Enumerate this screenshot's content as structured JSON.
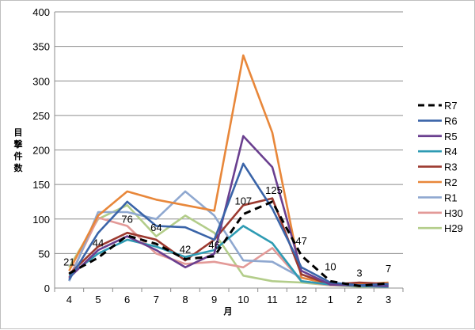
{
  "chart_data": {
    "type": "line",
    "title": "",
    "xlabel": "月",
    "ylabel": "目撃件数",
    "categories": [
      "4",
      "5",
      "6",
      "7",
      "8",
      "9",
      "10",
      "11",
      "12",
      "1",
      "2",
      "3"
    ],
    "ylim": [
      0,
      400
    ],
    "yticks": [
      "0",
      "50",
      "100",
      "150",
      "200",
      "250",
      "300",
      "350",
      "400"
    ],
    "grid": "horizontal",
    "legend_position": "right",
    "series": [
      {
        "name": "R7",
        "color": "#000000",
        "dashed": true,
        "labeled": true,
        "values": [
          21,
          44,
          76,
          64,
          42,
          46,
          107,
          125,
          47,
          10,
          3,
          7
        ]
      },
      {
        "name": "R6",
        "color": "#3a64a8",
        "dashed": false,
        "labeled": false,
        "values": [
          12,
          80,
          125,
          90,
          88,
          70,
          180,
          115,
          30,
          8,
          4,
          6
        ]
      },
      {
        "name": "R5",
        "color": "#6a3f8f",
        "dashed": false,
        "labeled": false,
        "values": [
          15,
          55,
          75,
          55,
          30,
          50,
          220,
          175,
          25,
          5,
          4,
          3
        ]
      },
      {
        "name": "R4",
        "color": "#2e9bb3",
        "dashed": false,
        "labeled": false,
        "values": [
          18,
          50,
          70,
          60,
          45,
          55,
          90,
          65,
          10,
          5,
          3,
          2
        ]
      },
      {
        "name": "R3",
        "color": "#9c3a30",
        "dashed": false,
        "labeled": false,
        "values": [
          20,
          60,
          80,
          70,
          40,
          70,
          120,
          130,
          20,
          5,
          8,
          6
        ]
      },
      {
        "name": "R2",
        "color": "#e8873a",
        "dashed": false,
        "labeled": false,
        "values": [
          25,
          105,
          140,
          128,
          120,
          112,
          337,
          225,
          15,
          6,
          5,
          8
        ]
      },
      {
        "name": "R1",
        "color": "#8fa8d0",
        "dashed": false,
        "labeled": false,
        "values": [
          10,
          110,
          110,
          100,
          140,
          105,
          40,
          38,
          15,
          6,
          4,
          5
        ]
      },
      {
        "name": "H30",
        "color": "#e39a98",
        "dashed": false,
        "labeled": false,
        "values": [
          15,
          102,
          90,
          50,
          35,
          38,
          30,
          58,
          10,
          4,
          3,
          2
        ]
      },
      {
        "name": "H29",
        "color": "#b3cd8a",
        "dashed": false,
        "labeled": false,
        "values": [
          30,
          100,
          120,
          75,
          105,
          80,
          18,
          10,
          8,
          4,
          2,
          3
        ]
      }
    ]
  }
}
